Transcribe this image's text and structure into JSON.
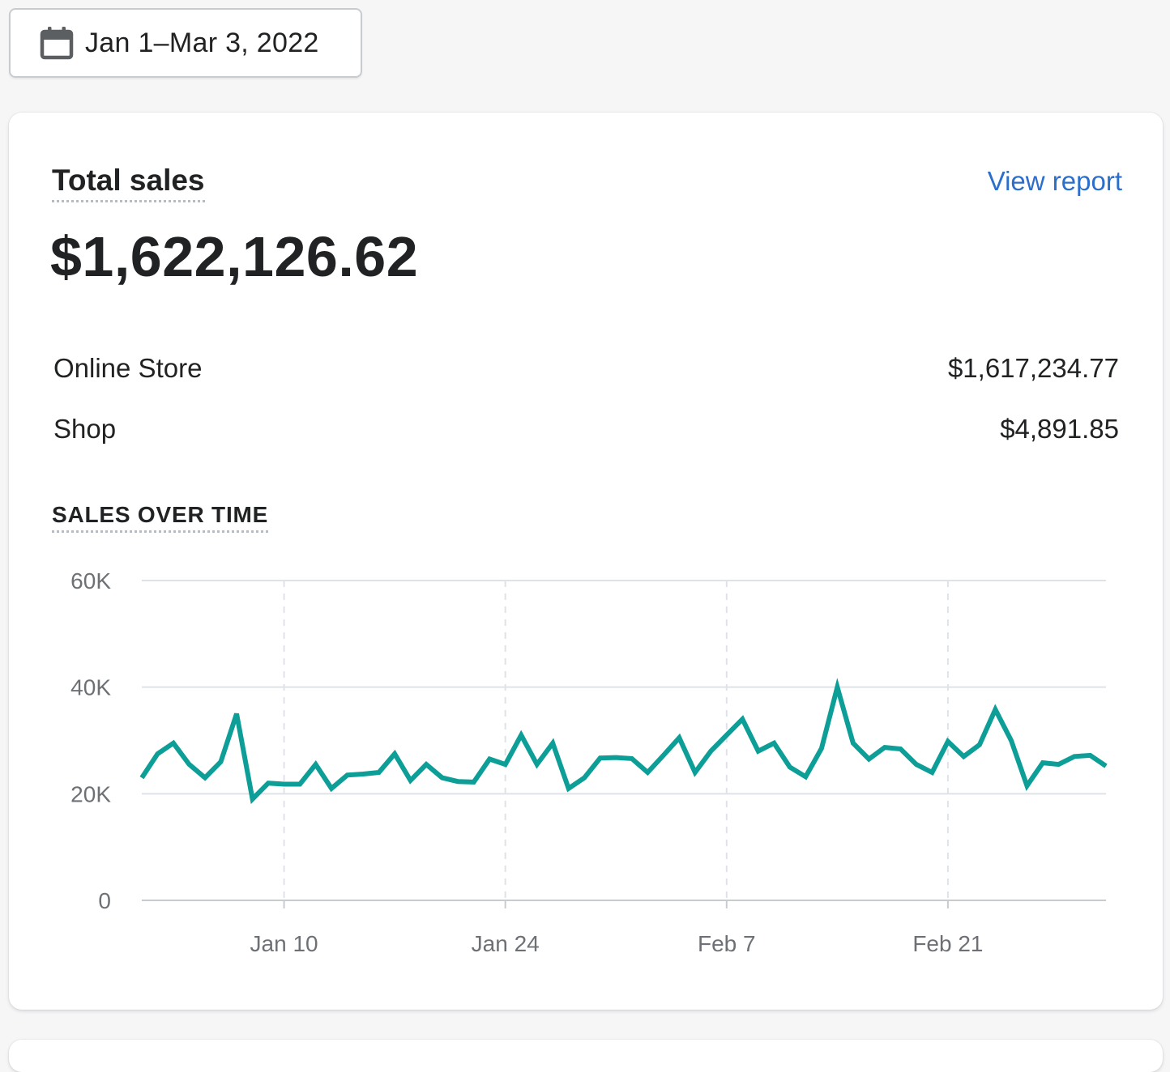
{
  "date_picker": {
    "icon": "calendar-icon",
    "label": "Jan 1–Mar 3, 2022"
  },
  "card": {
    "title": "Total sales",
    "view_report_label": "View report",
    "total_value": "$1,622,126.62",
    "breakdown": [
      {
        "label": "Online Store",
        "value": "$1,617,234.77"
      },
      {
        "label": "Shop",
        "value": "$4,891.85"
      }
    ],
    "section_title": "SALES OVER TIME"
  },
  "colors": {
    "line": "#0c9e97",
    "link": "#2c6ecb",
    "grid": "#dfe3e8"
  },
  "chart_data": {
    "type": "line",
    "x_start": "Jan 1",
    "x_end": "Mar 3",
    "x_tick_labels": [
      "Jan 10",
      "Jan 24",
      "Feb 7",
      "Feb 21"
    ],
    "y_tick_labels": [
      "0",
      "20K",
      "40K",
      "60K"
    ],
    "ylim": [
      0,
      60000
    ],
    "grid": {
      "horizontal": true,
      "vertical_dashed": true
    },
    "series": [
      {
        "values": [
          23000,
          27500,
          29500,
          25500,
          23000,
          26000,
          35000,
          19000,
          22000,
          21800,
          21800,
          25500,
          21000,
          23500,
          23700,
          24000,
          27500,
          22500,
          25500,
          23000,
          22300,
          22200,
          26500,
          25500,
          31000,
          25500,
          29500,
          21000,
          23000,
          26700,
          26800,
          26600,
          24000,
          27200,
          30500,
          24000,
          28000,
          31000,
          34000,
          28000,
          29500,
          25000,
          23200,
          28500,
          40000,
          29500,
          26500,
          28700,
          28400,
          25500,
          24000,
          29800,
          27000,
          29200,
          35800,
          30000,
          21500,
          25800,
          25500,
          27000,
          27200,
          25200
        ]
      }
    ]
  }
}
